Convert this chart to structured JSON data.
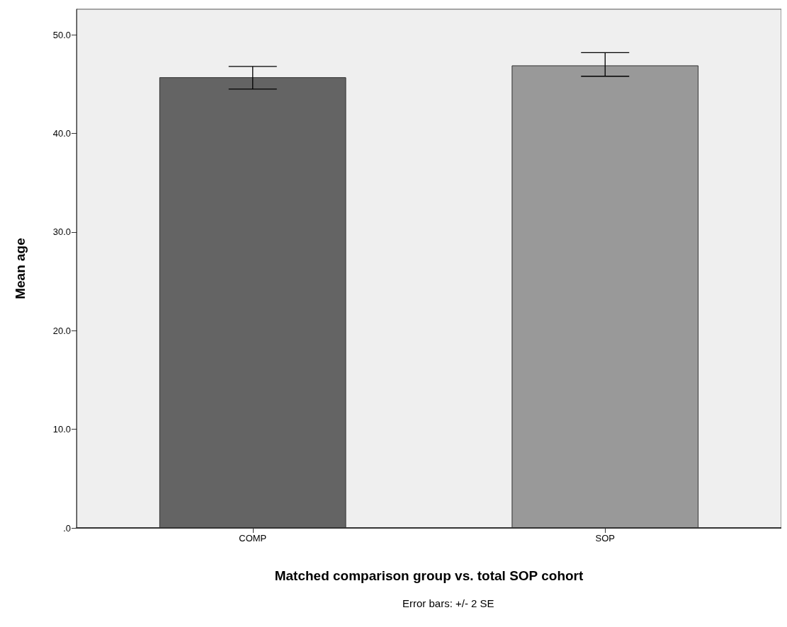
{
  "chart_data": {
    "type": "bar",
    "xlabel": "Matched comparison group vs. total SOP cohort",
    "ylabel": "Mean age",
    "categories": [
      "COMP",
      "SOP"
    ],
    "values": [
      45.7,
      46.9
    ],
    "colors": [
      "#646464",
      "#999999"
    ],
    "errors": [
      [
        44.5,
        46.8
      ],
      [
        45.8,
        48.2
      ]
    ],
    "ylim": [
      0,
      52.6
    ],
    "yticks": [
      {
        "value": 0,
        "label": ".0"
      },
      {
        "value": 10,
        "label": "10.0"
      },
      {
        "value": 20,
        "label": "20.0"
      },
      {
        "value": 30,
        "label": "30.0"
      },
      {
        "value": 40,
        "label": "40.0"
      },
      {
        "value": 50,
        "label": "50.0"
      }
    ],
    "grid": false,
    "annotations": [
      "Error bars: +/- 2 SE"
    ]
  }
}
